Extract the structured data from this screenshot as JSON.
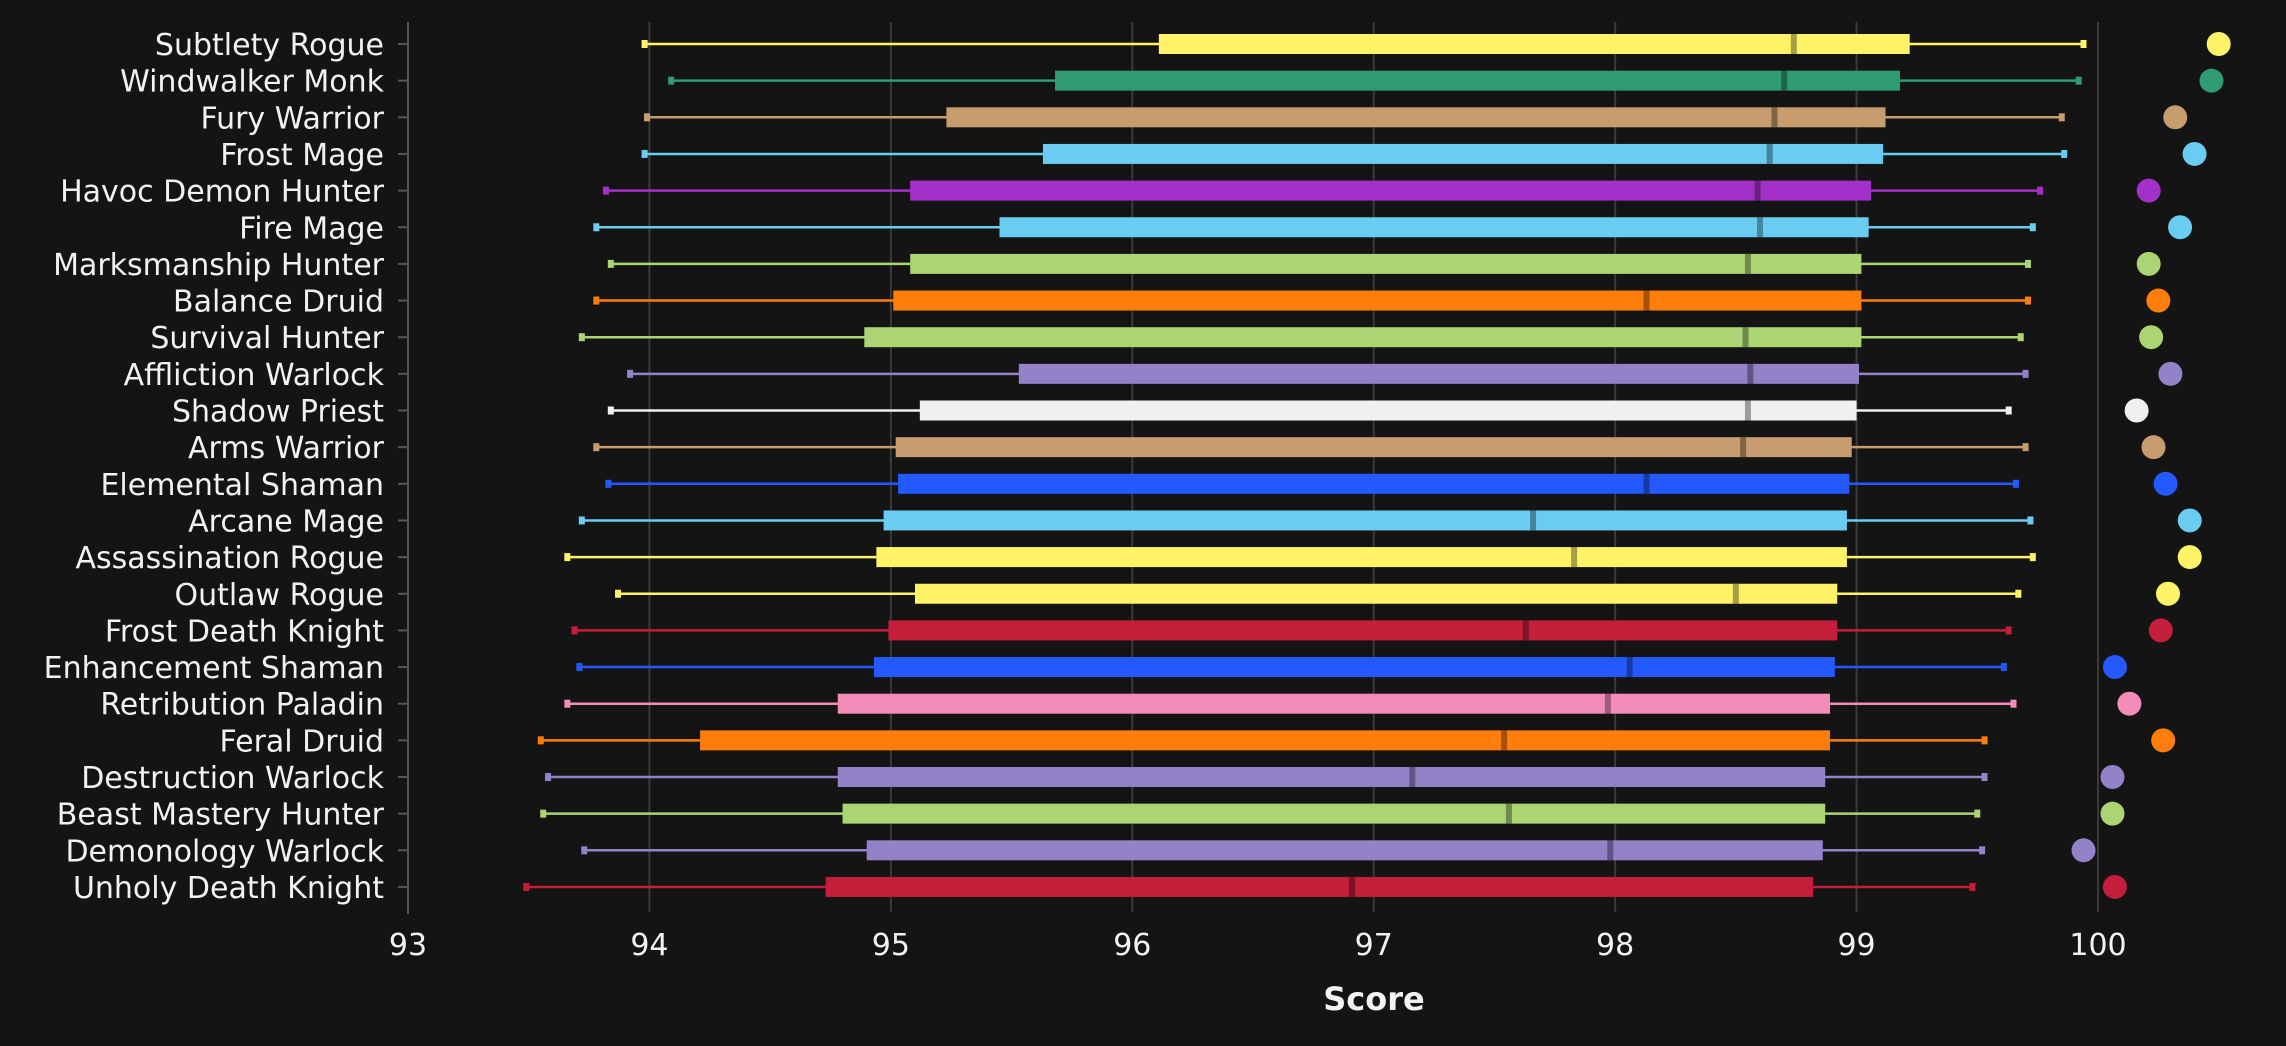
{
  "chart_data": {
    "type": "box",
    "xlabel": "Score",
    "xlim": [
      93,
      100.8
    ],
    "x_ticks": [
      93,
      94,
      95,
      96,
      97,
      98,
      99,
      100
    ],
    "grid": "vertical",
    "colors": {
      "background": "#141414",
      "grid": "#3a3a3a",
      "text": "#f2f2f2",
      "axis": "#555555"
    },
    "series": [
      {
        "category": "Subtlety Rogue",
        "color": "#fff468",
        "whisker_low": 93.98,
        "q1": 96.11,
        "median": 98.74,
        "q3": 99.22,
        "whisker_high": 99.94,
        "top": 100.5
      },
      {
        "category": "Windwalker Monk",
        "color": "#2e9b72",
        "whisker_low": 94.09,
        "q1": 95.68,
        "median": 98.7,
        "q3": 99.18,
        "whisker_high": 99.92,
        "top": 100.47
      },
      {
        "category": "Fury Warrior",
        "color": "#c79c6e",
        "whisker_low": 93.99,
        "q1": 95.23,
        "median": 98.66,
        "q3": 99.12,
        "whisker_high": 99.85,
        "top": 100.32
      },
      {
        "category": "Frost Mage",
        "color": "#69ccf0",
        "whisker_low": 93.98,
        "q1": 95.63,
        "median": 98.64,
        "q3": 99.11,
        "whisker_high": 99.86,
        "top": 100.4
      },
      {
        "category": "Havoc Demon Hunter",
        "color": "#a330c9",
        "whisker_low": 93.82,
        "q1": 95.08,
        "median": 98.59,
        "q3": 99.06,
        "whisker_high": 99.76,
        "top": 100.21
      },
      {
        "category": "Fire Mage",
        "color": "#69ccf0",
        "whisker_low": 93.78,
        "q1": 95.45,
        "median": 98.6,
        "q3": 99.05,
        "whisker_high": 99.73,
        "top": 100.34
      },
      {
        "category": "Marksmanship Hunter",
        "color": "#abd473",
        "whisker_low": 93.84,
        "q1": 95.08,
        "median": 98.55,
        "q3": 99.02,
        "whisker_high": 99.71,
        "top": 100.21
      },
      {
        "category": "Balance Druid",
        "color": "#ff7d0a",
        "whisker_low": 93.78,
        "q1": 95.01,
        "median": 98.13,
        "q3": 99.02,
        "whisker_high": 99.71,
        "top": 100.25
      },
      {
        "category": "Survival Hunter",
        "color": "#abd473",
        "whisker_low": 93.72,
        "q1": 94.89,
        "median": 98.54,
        "q3": 99.02,
        "whisker_high": 99.68,
        "top": 100.22
      },
      {
        "category": "Affliction Warlock",
        "color": "#9482c9",
        "whisker_low": 93.92,
        "q1": 95.53,
        "median": 98.56,
        "q3": 99.01,
        "whisker_high": 99.7,
        "top": 100.3
      },
      {
        "category": "Shadow Priest",
        "color": "#f0f0f0",
        "whisker_low": 93.84,
        "q1": 95.12,
        "median": 98.55,
        "q3": 99.0,
        "whisker_high": 99.63,
        "top": 100.16
      },
      {
        "category": "Arms Warrior",
        "color": "#c79c6e",
        "whisker_low": 93.78,
        "q1": 95.02,
        "median": 98.53,
        "q3": 98.98,
        "whisker_high": 99.7,
        "top": 100.23
      },
      {
        "category": "Elemental Shaman",
        "color": "#2459ff",
        "whisker_low": 93.83,
        "q1": 95.03,
        "median": 98.13,
        "q3": 98.97,
        "whisker_high": 99.66,
        "top": 100.28
      },
      {
        "category": "Arcane Mage",
        "color": "#69ccf0",
        "whisker_low": 93.72,
        "q1": 94.97,
        "median": 97.66,
        "q3": 98.96,
        "whisker_high": 99.72,
        "top": 100.38
      },
      {
        "category": "Assassination Rogue",
        "color": "#fff468",
        "whisker_low": 93.66,
        "q1": 94.94,
        "median": 97.83,
        "q3": 98.96,
        "whisker_high": 99.73,
        "top": 100.38
      },
      {
        "category": "Outlaw Rogue",
        "color": "#fff468",
        "whisker_low": 93.87,
        "q1": 95.1,
        "median": 98.5,
        "q3": 98.92,
        "whisker_high": 99.67,
        "top": 100.29
      },
      {
        "category": "Frost Death Knight",
        "color": "#c41e3a",
        "whisker_low": 93.69,
        "q1": 94.99,
        "median": 97.63,
        "q3": 98.92,
        "whisker_high": 99.63,
        "top": 100.26
      },
      {
        "category": "Enhancement Shaman",
        "color": "#2459ff",
        "whisker_low": 93.71,
        "q1": 94.93,
        "median": 98.06,
        "q3": 98.91,
        "whisker_high": 99.61,
        "top": 100.07
      },
      {
        "category": "Retribution Paladin",
        "color": "#f48cba",
        "whisker_low": 93.66,
        "q1": 94.78,
        "median": 97.97,
        "q3": 98.89,
        "whisker_high": 99.65,
        "top": 100.13
      },
      {
        "category": "Feral Druid",
        "color": "#ff7d0a",
        "whisker_low": 93.55,
        "q1": 94.21,
        "median": 97.54,
        "q3": 98.89,
        "whisker_high": 99.53,
        "top": 100.27
      },
      {
        "category": "Destruction Warlock",
        "color": "#9482c9",
        "whisker_low": 93.58,
        "q1": 94.78,
        "median": 97.16,
        "q3": 98.87,
        "whisker_high": 99.53,
        "top": 100.06
      },
      {
        "category": "Beast Mastery Hunter",
        "color": "#abd473",
        "whisker_low": 93.56,
        "q1": 94.8,
        "median": 97.56,
        "q3": 98.87,
        "whisker_high": 99.5,
        "top": 100.06
      },
      {
        "category": "Demonology Warlock",
        "color": "#9482c9",
        "whisker_low": 93.73,
        "q1": 94.9,
        "median": 97.98,
        "q3": 98.86,
        "whisker_high": 99.52,
        "top": 99.94
      },
      {
        "category": "Unholy Death Knight",
        "color": "#c41e3a",
        "whisker_low": 93.49,
        "q1": 94.73,
        "median": 96.91,
        "q3": 98.82,
        "whisker_high": 99.48,
        "top": 100.07
      }
    ]
  }
}
